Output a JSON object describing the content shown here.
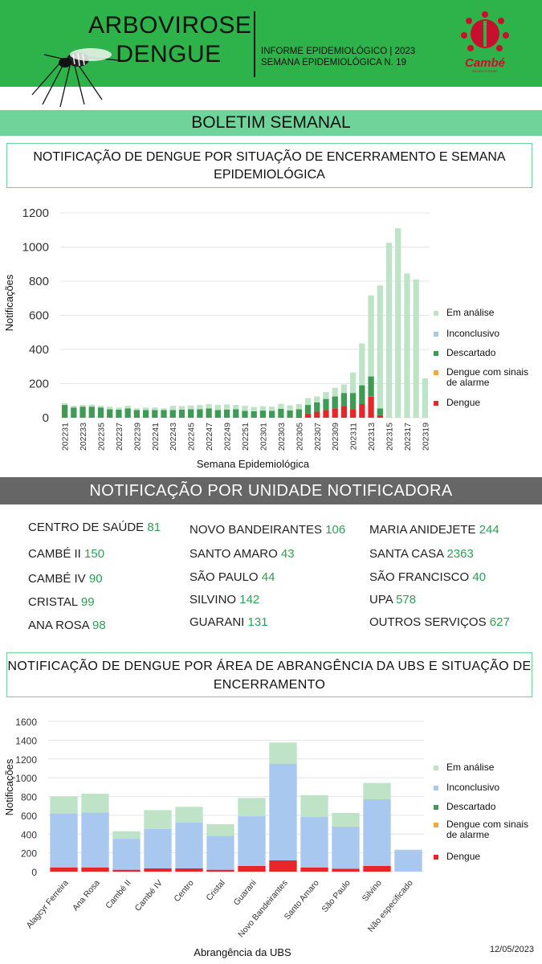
{
  "header": {
    "title_line1": "ARBOVIROSE",
    "title_line2": "DENGUE",
    "info_line1": "INFORME EPIDEMIOLÓGICO | 2023",
    "info_line2": "SEMANA EPIDEMIOLÓGICA  N. 19",
    "logo_text": "Cambé",
    "logo_subtext": "UM NOVO FUTURO",
    "bg_color": "#2db34a"
  },
  "section_title": "BOLETIM SEMANAL",
  "chart1_title": "NOTIFICAÇÃO DE DENGUE POR SITUAÇÃO DE ENCERRAMENTO E SEMANA EPIDEMIOLÓGICA",
  "units_title": "NOTIFICAÇÃO POR UNIDADE NOTIFICADORA",
  "units": [
    [
      {
        "name": "CENTRO  DE SAÚDE",
        "value": "81"
      },
      {
        "name": "CAMBÉ II",
        "value": "150"
      },
      {
        "name": "CAMBÉ IV",
        "value": "90"
      },
      {
        "name": "CRISTAL",
        "value": "99"
      },
      {
        "name": "ANA ROSA",
        "value": "98"
      }
    ],
    [
      {
        "name": "NOVO BANDEIRANTES",
        "value": "106"
      },
      {
        "name": "SANTO AMARO",
        "value": "43"
      },
      {
        "name": "SÃO PAULO",
        "value": "44"
      },
      {
        "name": "SILVINO",
        "value": "142"
      },
      {
        "name": "GUARANI",
        "value": "131"
      }
    ],
    [
      {
        "name": "MARIA ANIDEJETE",
        "value": "244"
      },
      {
        "name": "SANTA CASA",
        "value": "2363"
      },
      {
        "name": "SÃO FRANCISCO",
        "value": "40"
      },
      {
        "name": "UPA",
        "value": "578"
      },
      {
        "name": "OUTROS SERVIÇOS",
        "value": "627"
      }
    ]
  ],
  "chart2_title": "NOTIFICAÇÃO DE DENGUE POR ÁREA DE ABRANGÊNCIA DA UBS E SITUAÇÃO DE ENCERRAMENTO",
  "date": "12/05/2023",
  "chart_data": [
    {
      "type": "bar",
      "stacked": true,
      "xlabel": "Semana Epidemiológica",
      "ylabel": "Notificações",
      "ylim": [
        0,
        1200
      ],
      "yticks": [
        0,
        200,
        400,
        600,
        800,
        1000,
        1200
      ],
      "legend_position": "right",
      "categories": [
        "202231",
        "202232",
        "202233",
        "202234",
        "202235",
        "202236",
        "202237",
        "202238",
        "202239",
        "202240",
        "202241",
        "202242",
        "202243",
        "202244",
        "202245",
        "202246",
        "202247",
        "202248",
        "202249",
        "202250",
        "202251",
        "202252",
        "202301",
        "202302",
        "202303",
        "202304",
        "202305",
        "202306",
        "202307",
        "202308",
        "202309",
        "202310",
        "202311",
        "202312",
        "202313",
        "202314",
        "202315",
        "202316",
        "202317",
        "202318",
        "202319"
      ],
      "tick_labels": [
        "202231",
        "202233",
        "202235",
        "202237",
        "202239",
        "202241",
        "202243",
        "202245",
        "202247",
        "202249",
        "202251",
        "202301",
        "202303",
        "202305",
        "202307",
        "202309",
        "202311",
        "202313",
        "202315",
        "202317",
        "202319"
      ],
      "series": [
        {
          "name": "Dengue",
          "color": "#e8262a",
          "values": [
            0,
            0,
            0,
            0,
            0,
            0,
            0,
            0,
            0,
            0,
            0,
            0,
            0,
            0,
            0,
            0,
            0,
            0,
            0,
            0,
            0,
            0,
            0,
            0,
            0,
            3,
            5,
            25,
            35,
            45,
            55,
            70,
            50,
            80,
            125,
            15,
            0,
            0,
            0,
            0,
            0
          ]
        },
        {
          "name": "Dengue com sinais de alarme",
          "color": "#f4a93c",
          "values": [
            0,
            0,
            0,
            0,
            0,
            0,
            0,
            0,
            0,
            0,
            0,
            0,
            0,
            0,
            0,
            0,
            0,
            0,
            0,
            0,
            0,
            0,
            0,
            0,
            0,
            0,
            0,
            0,
            0,
            0,
            0,
            0,
            0,
            0,
            2,
            0,
            0,
            0,
            0,
            0,
            0
          ]
        },
        {
          "name": "Descartado",
          "color": "#3f9a55",
          "values": [
            75,
            60,
            65,
            65,
            60,
            50,
            48,
            55,
            45,
            45,
            45,
            45,
            45,
            48,
            50,
            50,
            55,
            45,
            48,
            50,
            40,
            38,
            42,
            40,
            52,
            40,
            45,
            50,
            55,
            65,
            70,
            75,
            95,
            110,
            115,
            40,
            0,
            0,
            0,
            0,
            0
          ]
        },
        {
          "name": "Inconclusivo",
          "color": "#a9c8f0",
          "values": [
            0,
            0,
            0,
            0,
            0,
            0,
            0,
            0,
            0,
            0,
            0,
            0,
            0,
            0,
            0,
            0,
            0,
            0,
            0,
            0,
            0,
            0,
            0,
            0,
            0,
            0,
            0,
            0,
            0,
            0,
            0,
            0,
            0,
            0,
            0,
            0,
            0,
            0,
            0,
            0,
            0
          ]
        },
        {
          "name": "Em análise",
          "color": "#bfe3c6",
          "values": [
            10,
            10,
            10,
            12,
            10,
            15,
            12,
            15,
            10,
            15,
            15,
            10,
            25,
            20,
            22,
            25,
            25,
            30,
            30,
            25,
            30,
            25,
            25,
            25,
            30,
            30,
            30,
            40,
            35,
            40,
            50,
            50,
            120,
            245,
            475,
            720,
            1025,
            1110,
            845,
            810,
            230
          ]
        }
      ]
    },
    {
      "type": "bar",
      "stacked": true,
      "xlabel": "Abrangência da UBS",
      "ylabel": "Notificações",
      "ylim": [
        0,
        1600
      ],
      "yticks": [
        0,
        200,
        400,
        600,
        800,
        1000,
        1200,
        1400,
        1600
      ],
      "legend_position": "right",
      "categories": [
        "Alagcyr Ferreira",
        "Ana Rosa",
        "Cambé II",
        "Cambé IV",
        "Centro",
        "Cristal",
        "Guarani",
        "Novo Bandeirantes",
        "Santo Amaro",
        "São Paulo",
        "Silvino",
        "Não especificado"
      ],
      "series": [
        {
          "name": "Dengue",
          "color": "#e8262a",
          "values": [
            45,
            45,
            20,
            35,
            35,
            20,
            60,
            120,
            45,
            30,
            60,
            0
          ]
        },
        {
          "name": "Dengue com sinais de alarme",
          "color": "#f4a93c",
          "values": [
            0,
            0,
            0,
            0,
            0,
            0,
            0,
            0,
            0,
            0,
            0,
            0
          ]
        },
        {
          "name": "Descartado",
          "color": "#3f9a55",
          "values": [
            0,
            0,
            0,
            0,
            0,
            0,
            0,
            0,
            0,
            0,
            0,
            0
          ]
        },
        {
          "name": "Inconclusivo",
          "color": "#a9c8f0",
          "values": [
            575,
            585,
            330,
            420,
            490,
            360,
            530,
            1030,
            540,
            450,
            710,
            230
          ]
        },
        {
          "name": "Em análise",
          "color": "#bfe3c6",
          "values": [
            180,
            200,
            80,
            200,
            165,
            125,
            195,
            225,
            230,
            145,
            175,
            5
          ]
        }
      ]
    }
  ]
}
